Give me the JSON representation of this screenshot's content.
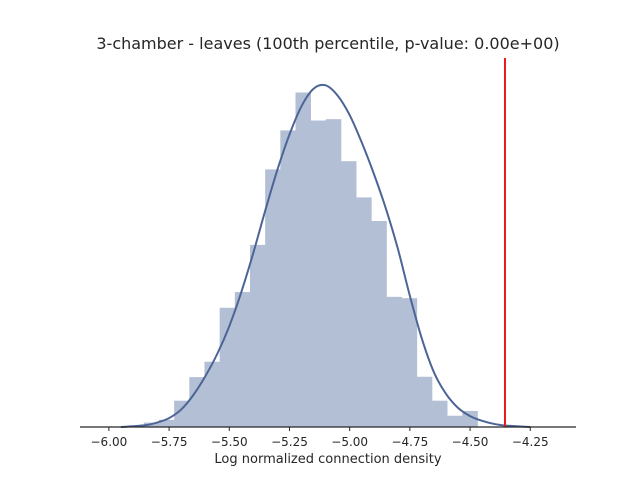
{
  "chart_data": {
    "type": "bar",
    "title": "3-chamber - leaves (100th percentile, p-value: 0.00e+00)",
    "xlabel": "Log normalized connection density",
    "ylabel": "",
    "xlim": [
      -6.12,
      -4.06
    ],
    "ylim": [
      0,
      1.08
    ],
    "grid": false,
    "x_ticks": [
      -6.0,
      -5.75,
      -5.5,
      -5.25,
      -5.0,
      -4.75,
      -4.5,
      -4.25
    ],
    "x_tick_labels": [
      "−6.00",
      "−5.75",
      "−5.50",
      "−5.25",
      "−5.00",
      "−4.75",
      "−4.50",
      "−4.25"
    ],
    "histogram": {
      "bin_edges": [
        -5.855,
        -5.792,
        -5.729,
        -5.666,
        -5.603,
        -5.54,
        -5.477,
        -5.414,
        -5.351,
        -5.288,
        -5.225,
        -5.162,
        -5.099,
        -5.036,
        -4.973,
        -4.91,
        -4.847,
        -4.784,
        -4.721,
        -4.658,
        -4.595,
        -4.532,
        -4.469,
        -4.406,
        -4.343
      ],
      "values": [
        0.013,
        0.021,
        0.077,
        0.146,
        0.191,
        0.349,
        0.395,
        0.533,
        0.754,
        0.868,
        0.979,
        0.897,
        0.901,
        0.778,
        0.672,
        0.603,
        0.381,
        0.377,
        0.147,
        0.077,
        0.033,
        0.047,
        0.0,
        0.0
      ],
      "color": "#b3bfd4"
    },
    "kde": {
      "x": [
        -5.95,
        -5.85,
        -5.8,
        -5.75,
        -5.7,
        -5.65,
        -5.6,
        -5.55,
        -5.5,
        -5.45,
        -5.4,
        -5.35,
        -5.3,
        -5.25,
        -5.2,
        -5.15,
        -5.1,
        -5.05,
        -5.0,
        -4.95,
        -4.9,
        -4.85,
        -4.8,
        -4.75,
        -4.7,
        -4.65,
        -4.6,
        -4.55,
        -4.5,
        -4.45,
        -4.4,
        -4.35,
        -4.3,
        -4.25
      ],
      "y": [
        0.0,
        0.005,
        0.013,
        0.026,
        0.051,
        0.093,
        0.148,
        0.214,
        0.295,
        0.395,
        0.51,
        0.635,
        0.753,
        0.856,
        0.939,
        0.99,
        1.0,
        0.97,
        0.913,
        0.833,
        0.742,
        0.64,
        0.522,
        0.384,
        0.258,
        0.16,
        0.097,
        0.056,
        0.032,
        0.018,
        0.009,
        0.004,
        0.002,
        0.0
      ],
      "color": "#4c6496"
    },
    "reference_line": {
      "x": -4.355,
      "color": "#e8181a"
    }
  }
}
